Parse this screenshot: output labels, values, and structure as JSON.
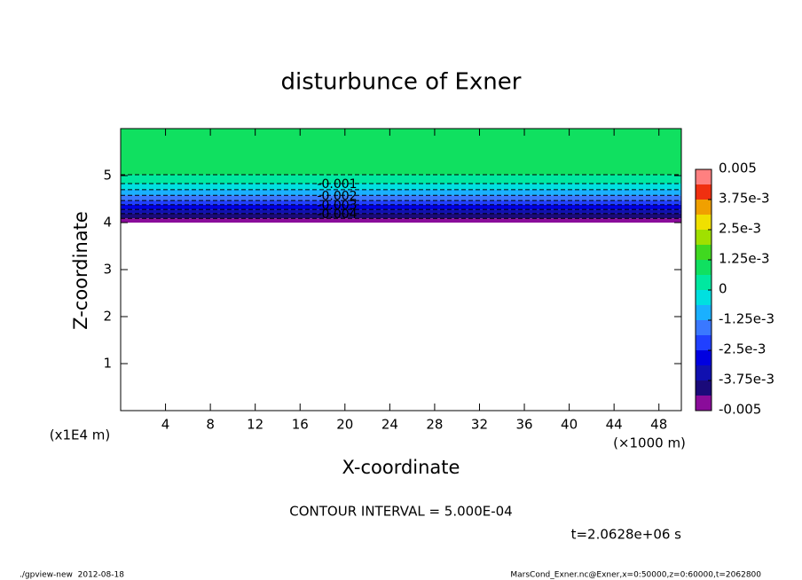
{
  "chart_data": {
    "type": "contour",
    "title": "disturbunce of Exner",
    "xlabel": "X-coordinate",
    "ylabel": "Z-coordinate",
    "xunit": "(×1000 m)",
    "yunit": "(x1E4 m)",
    "xlim": [
      0,
      50
    ],
    "xticks": [
      4,
      8,
      12,
      16,
      20,
      24,
      28,
      32,
      36,
      40,
      44,
      48
    ],
    "ylim": [
      0,
      6
    ],
    "yticks": [
      1,
      2,
      3,
      4,
      5
    ],
    "data_zlim": [
      4.0,
      6
    ],
    "top_color": "#10e060",
    "contours": [
      {
        "level": -0.0005,
        "z": 5.02,
        "color": "#00e8a0"
      },
      {
        "level": -0.001,
        "z": 4.83,
        "color": "#00e0e0"
      },
      {
        "level": -0.0015,
        "z": 4.7,
        "color": "#1ab0ff"
      },
      {
        "level": -0.002,
        "z": 4.58,
        "color": "#3a78ff"
      },
      {
        "level": -0.0025,
        "z": 4.47,
        "color": "#2040ff"
      },
      {
        "level": -0.003,
        "z": 4.38,
        "color": "#0000e0"
      },
      {
        "level": -0.0035,
        "z": 4.28,
        "color": "#1010b0"
      },
      {
        "level": -0.004,
        "z": 4.19,
        "color": "#1a0a7a"
      },
      {
        "level": -0.0045,
        "z": 4.09,
        "color": "#8a0c9a"
      }
    ],
    "colorbar": {
      "clim": [
        -0.005,
        0.005
      ],
      "colors": [
        "#8a0c9a",
        "#1a0a7a",
        "#1010b0",
        "#0000e0",
        "#2040ff",
        "#3a78ff",
        "#1ab0ff",
        "#00e0e0",
        "#00e8a0",
        "#10e060",
        "#40d820",
        "#a0e000",
        "#f0e000",
        "#f0a000",
        "#f03010",
        "#ff8080"
      ],
      "ticks": [
        -0.005,
        {
          "value": -0.00375,
          "label": "-3.75e-3"
        },
        {
          "value": -0.0025,
          "label": "-2.5e-3"
        },
        {
          "value": -0.00125,
          "label": "-1.25e-3"
        },
        0,
        {
          "value": 0.00125,
          "label": "1.25e-3"
        },
        {
          "value": 0.0025,
          "label": "2.5e-3"
        },
        {
          "value": 0.00375,
          "label": "3.75e-3"
        },
        0.005
      ]
    },
    "contour_interval": "CONTOUR INTERVAL = 5.000E-04",
    "time": "t=2.0628e+06 s",
    "footer_left": "./gpview-new  2012-08-18",
    "footer_right": "MarsCond_Exner.nc@Exner,x=0:50000,z=0:60000,t=2062800"
  }
}
